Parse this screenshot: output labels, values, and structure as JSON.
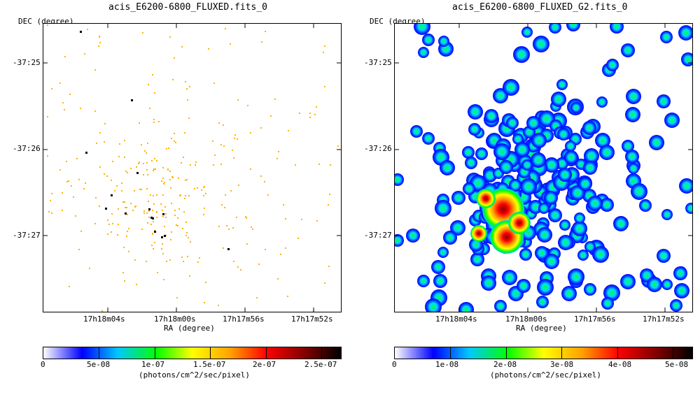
{
  "panels": [
    {
      "title": "acis_E6200-6800_FLUXED.fits_0",
      "ylabel": "DEC (degree)",
      "xlabel": "RA (degree)",
      "yticks": [
        "-37:25",
        "-37:26",
        "-37:27"
      ],
      "xticks": [
        "17h18m04s",
        "17h18m00s",
        "17h17m56s",
        "17h17m52s"
      ],
      "colorbar_ticks": [
        "0",
        "5e-08",
        "1e-07",
        "1.5e-07",
        "2e-07",
        "2.5e-07"
      ],
      "colorbar_label": "(photons/cm^2/sec/pixel)",
      "style": "sparse"
    },
    {
      "title": "acis_E6200-6800_FLUXED_G2.fits_0",
      "ylabel": "DEC (degree)",
      "xlabel": "RA (degree)",
      "yticks": [
        "-37:25",
        "-37:26",
        "-37:27"
      ],
      "xticks": [
        "17h18m04s",
        "17h18m00s",
        "17h17m56s",
        "17h17m52s"
      ],
      "colorbar_ticks": [
        "0",
        "1e-08",
        "2e-08",
        "3e-08",
        "4e-08",
        "5e-08"
      ],
      "colorbar_label": "(photons/cm^2/sec/pixel)",
      "style": "smoothed"
    }
  ],
  "colormap": [
    "#ffffff",
    "#0000ff",
    "#00c8ff",
    "#00ff00",
    "#ffff00",
    "#ffa000",
    "#ff0000",
    "#800000",
    "#000000"
  ]
}
